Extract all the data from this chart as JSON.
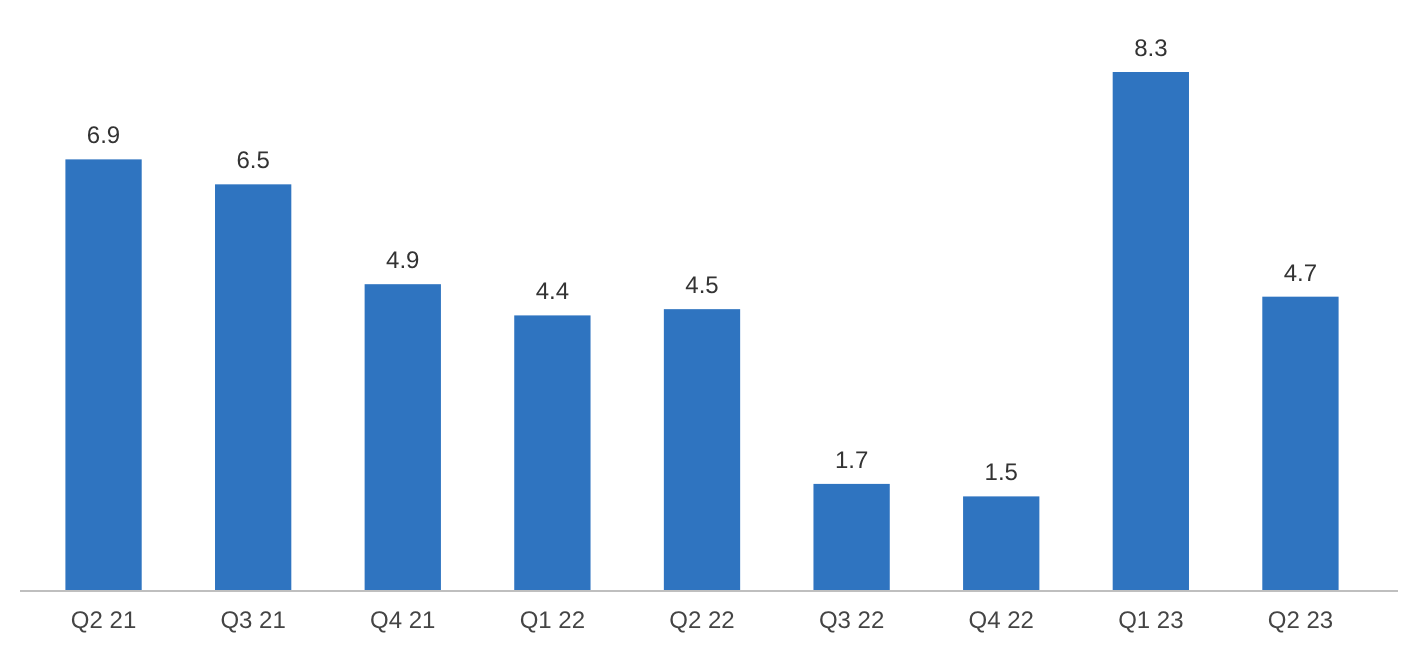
{
  "chart_data": {
    "type": "bar",
    "categories": [
      "Q2 21",
      "Q3 21",
      "Q4 21",
      "Q1 22",
      "Q2 22",
      "Q3 22",
      "Q4 22",
      "Q1 23",
      "Q2 23"
    ],
    "values": [
      6.9,
      6.5,
      4.9,
      4.4,
      4.5,
      1.7,
      1.5,
      8.3,
      4.7
    ],
    "color": "#2f74c0",
    "data_labels": true
  }
}
